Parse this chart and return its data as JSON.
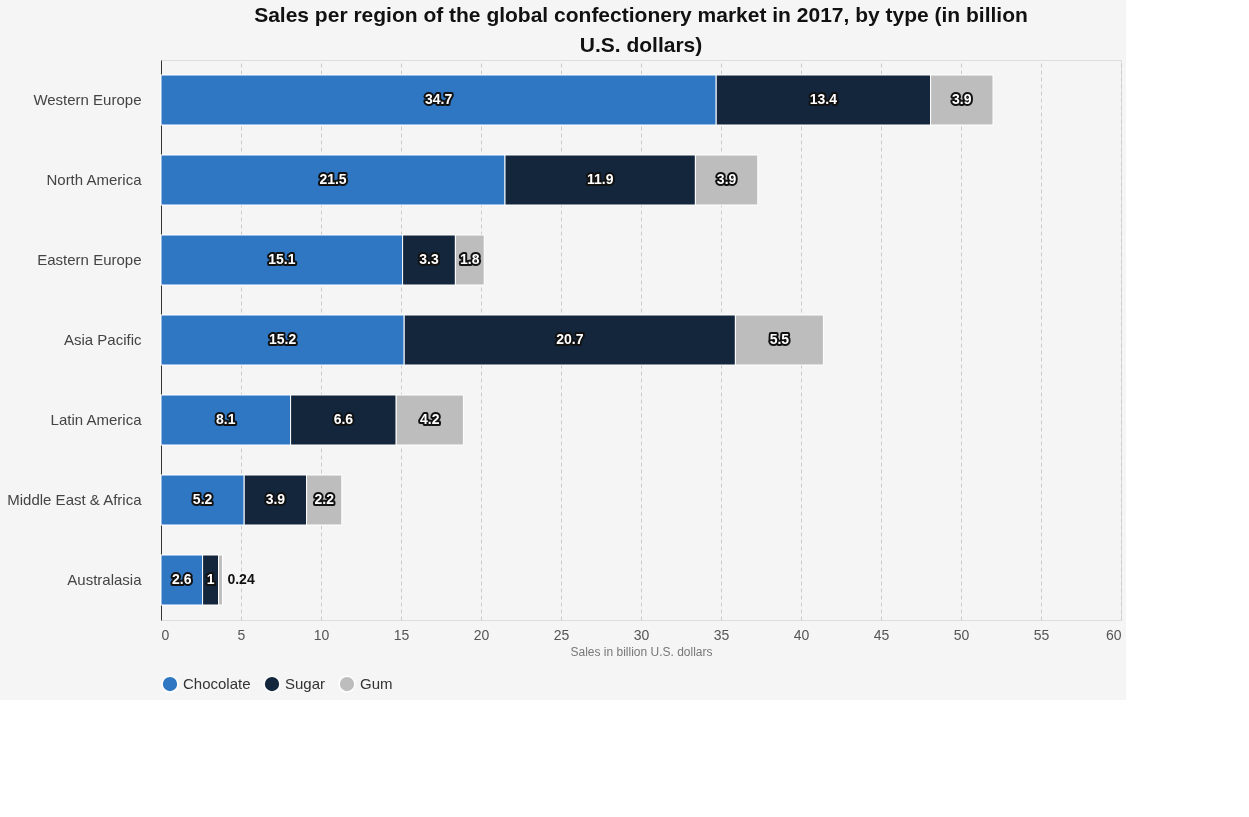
{
  "chart_data": {
    "type": "bar",
    "orientation": "horizontal",
    "stacked": true,
    "title": "Sales per region of the global confectionery market in 2017, by type (in billion U.S. dollars)",
    "xlabel": "Sales in billion U.S. dollars",
    "categories": [
      "Western Europe",
      "North America",
      "Eastern Europe",
      "Asia Pacific",
      "Latin America",
      "Middle East & Africa",
      "Australasia"
    ],
    "series": [
      {
        "name": "Chocolate",
        "color": "#2f77c3",
        "values": [
          34.7,
          21.5,
          15.1,
          15.2,
          8.1,
          5.2,
          2.6
        ]
      },
      {
        "name": "Sugar",
        "color": "#13263c",
        "values": [
          13.4,
          11.9,
          3.3,
          20.7,
          6.6,
          3.9,
          1
        ]
      },
      {
        "name": "Gum",
        "color": "#bdbdbd",
        "values": [
          3.9,
          3.9,
          1.8,
          5.5,
          4.2,
          2.2,
          0.24
        ]
      }
    ],
    "xlim": [
      0,
      60
    ],
    "xticks": [
      0,
      5,
      10,
      15,
      20,
      25,
      30,
      35,
      40,
      45,
      50,
      55,
      60
    ],
    "grid": "x",
    "legend": "bottom",
    "data_labels": true
  }
}
